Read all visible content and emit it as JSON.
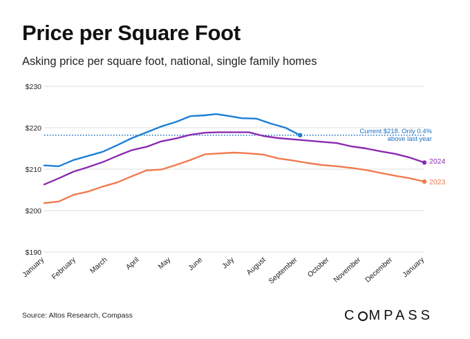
{
  "title": "Price per Square Foot",
  "subtitle": "Asking price per square foot, national, single family homes",
  "source": "Source: Altos Research, Compass",
  "logo_text": "COMPASS",
  "chart_data": {
    "type": "line",
    "ylim": [
      190,
      230
    ],
    "yticks": [
      "$190",
      "$200",
      "$210",
      "$220",
      "$230"
    ],
    "ytick_values": [
      190,
      200,
      210,
      220,
      230
    ],
    "x_labels": [
      "January",
      "February",
      "March",
      "April",
      "May",
      "June",
      "July",
      "August",
      "September",
      "October",
      "November",
      "December",
      "January"
    ],
    "x_range": [
      0,
      52
    ],
    "grid": "horizontal",
    "series": [
      {
        "name": "2023",
        "color": "#f07a4e",
        "end_marker": true,
        "x": [
          0,
          2,
          4,
          6,
          8,
          10,
          12,
          14,
          16,
          18,
          20,
          22,
          24,
          26,
          28,
          30,
          32,
          34,
          36,
          38,
          40,
          42,
          44,
          46,
          48,
          50,
          52
        ],
        "y": [
          201.8,
          202.2,
          203.8,
          204.6,
          205.8,
          206.8,
          208.3,
          209.7,
          209.9,
          211.0,
          212.2,
          213.6,
          213.8,
          214.0,
          213.8,
          213.5,
          212.6,
          212.1,
          211.5,
          211.0,
          210.7,
          210.3,
          209.8,
          209.1,
          208.4,
          207.8,
          207.0
        ]
      },
      {
        "name": "2024",
        "color": "#8b2bb0",
        "end_marker": true,
        "x": [
          0,
          2,
          4,
          6,
          8,
          10,
          12,
          14,
          16,
          18,
          20,
          22,
          24,
          26,
          28,
          30,
          32,
          34,
          36,
          38,
          40,
          42,
          44,
          46,
          48,
          50,
          52
        ],
        "y": [
          206.3,
          207.8,
          209.4,
          210.5,
          211.7,
          213.2,
          214.6,
          215.4,
          216.7,
          217.4,
          218.3,
          218.8,
          218.9,
          218.9,
          218.9,
          218.0,
          217.5,
          217.2,
          216.9,
          216.6,
          216.3,
          215.5,
          215.0,
          214.3,
          213.7,
          212.8,
          211.6
        ]
      },
      {
        "name": "",
        "color": "#1a7fd6",
        "end_marker": true,
        "x": [
          0,
          2,
          4,
          6,
          8,
          10,
          12,
          14,
          16,
          18,
          20,
          22,
          23.5,
          25,
          27,
          29,
          31,
          33,
          35
        ],
        "y": [
          210.9,
          210.7,
          212.2,
          213.2,
          214.2,
          215.8,
          217.5,
          218.9,
          220.3,
          221.4,
          222.8,
          223.0,
          223.3,
          222.9,
          222.3,
          222.2,
          221.0,
          220.0,
          218.2
        ]
      }
    ],
    "reference_line": {
      "y": 218.2,
      "color": "#1a6fc4"
    },
    "annotation": {
      "lines": [
        "Current $218. Only 0.4%",
        "above last year"
      ],
      "color": "#1a6fc4"
    },
    "series_labels": [
      {
        "text": "2024",
        "color": "#8b2bb0"
      },
      {
        "text": "2023",
        "color": "#f07a4e"
      }
    ]
  }
}
